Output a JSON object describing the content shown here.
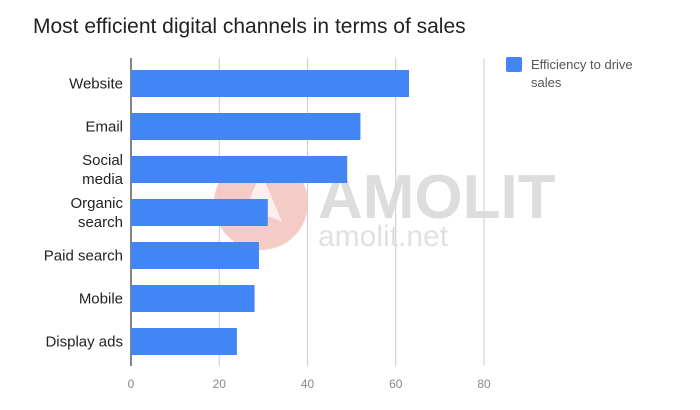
{
  "chart_data": {
    "type": "bar",
    "orientation": "horizontal",
    "title": "Most efficient digital channels in terms of sales",
    "categories": [
      [
        "Website"
      ],
      [
        "Email"
      ],
      [
        "Social",
        "media"
      ],
      [
        "Organic",
        "search"
      ],
      [
        "Paid search"
      ],
      [
        "Mobile"
      ],
      [
        "Display ads"
      ]
    ],
    "series": [
      {
        "name": "Efficiency to drive sales",
        "legend_lines": [
          "Efficiency to drive",
          "sales"
        ],
        "color": "#4285f4",
        "values": [
          63,
          52,
          49,
          31,
          29,
          28,
          24
        ]
      }
    ],
    "xlim": [
      0,
      80
    ],
    "xticks": [
      "0",
      "20",
      "40",
      "60",
      "80"
    ],
    "grid": true,
    "legend_position": "top-right"
  },
  "watermark": {
    "brand": "AMOLIT",
    "site": "amolit.net"
  }
}
